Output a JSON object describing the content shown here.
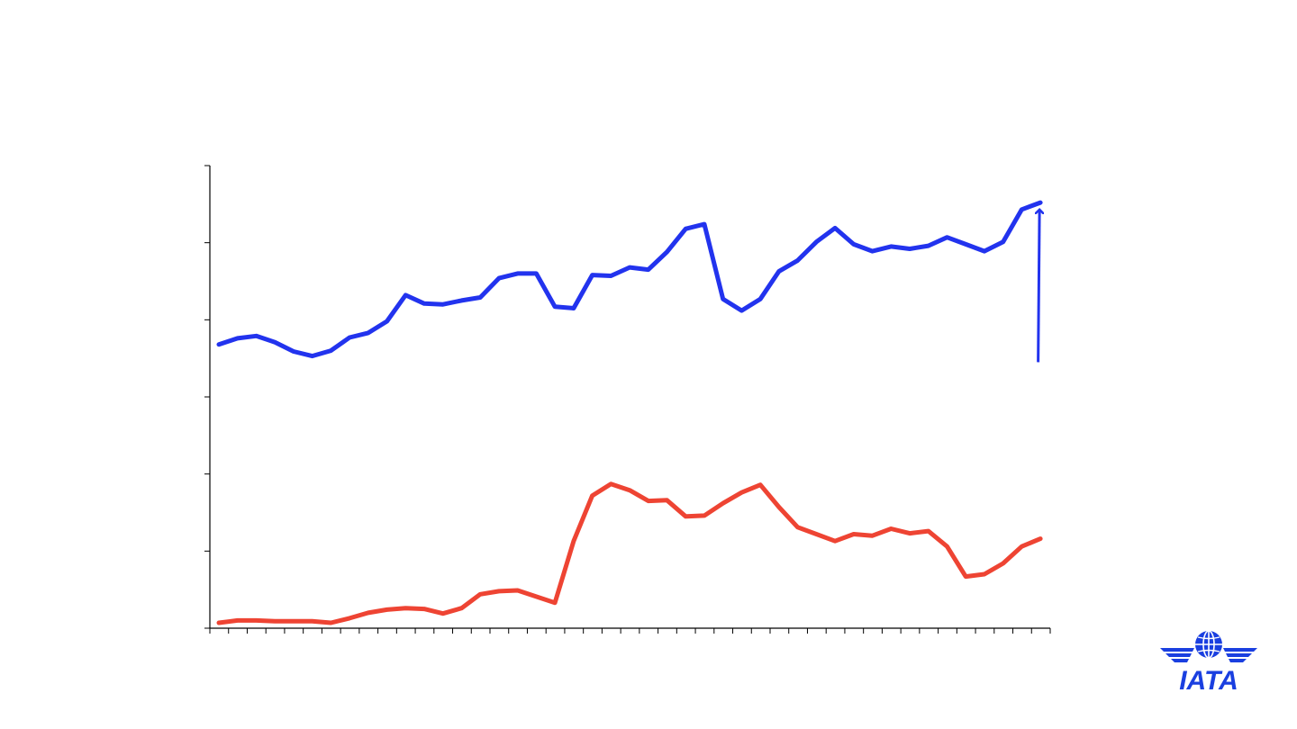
{
  "chart_data": {
    "type": "line",
    "title": "",
    "xlabel": "",
    "ylabel": "",
    "ylim": [
      0,
      6
    ],
    "y_ticks": [
      0,
      1,
      2,
      3,
      4,
      5,
      6
    ],
    "x_tick_count": 45,
    "grid": false,
    "series": [
      {
        "color": "#2233ee",
        "values": [
          3.68,
          3.76,
          3.79,
          3.71,
          3.59,
          3.53,
          3.6,
          3.77,
          3.83,
          3.98,
          4.32,
          4.21,
          4.2,
          4.25,
          4.29,
          4.54,
          4.6,
          4.6,
          4.17,
          4.15,
          4.58,
          4.57,
          4.68,
          4.65,
          4.88,
          5.18,
          5.24,
          4.27,
          4.12,
          4.27,
          4.63,
          4.77,
          5.01,
          5.19,
          4.98,
          4.89,
          4.95,
          4.92,
          4.96,
          5.07,
          4.98,
          4.89,
          5.01,
          5.43,
          5.52
        ]
      },
      {
        "color": "#ee4433",
        "values": [
          0.07,
          0.1,
          0.1,
          0.09,
          0.09,
          0.09,
          0.07,
          0.13,
          0.2,
          0.24,
          0.26,
          0.25,
          0.19,
          0.26,
          0.44,
          0.48,
          0.49,
          0.41,
          0.33,
          1.13,
          1.72,
          1.87,
          1.79,
          1.65,
          1.66,
          1.45,
          1.46,
          1.62,
          1.76,
          1.86,
          1.57,
          1.31,
          1.22,
          1.13,
          1.22,
          1.2,
          1.29,
          1.23,
          1.26,
          1.06,
          0.67,
          0.7,
          0.84,
          1.06,
          1.16
        ]
      }
    ],
    "annotations": [
      {
        "type": "arrow",
        "color": "#2233ee",
        "from_y": 3.45,
        "to_y": 5.43,
        "x_index": 44
      }
    ]
  },
  "logo": {
    "name": "IATA",
    "text": "IATA",
    "color": "#1a3fe0"
  }
}
